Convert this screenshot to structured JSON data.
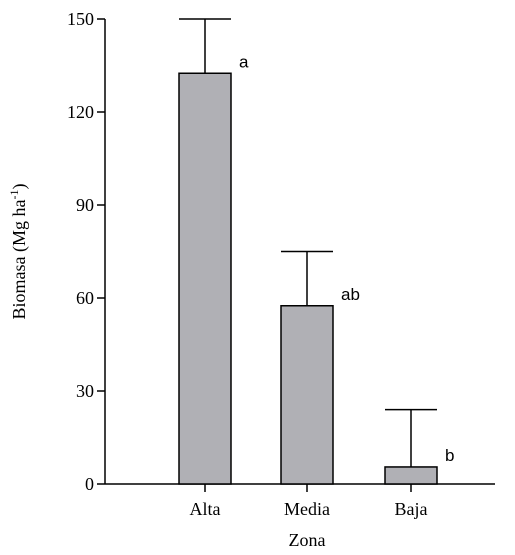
{
  "chart_data": {
    "type": "bar",
    "categories": [
      "Alta",
      "Media",
      "Baja"
    ],
    "values": [
      132.5,
      57.5,
      5.5
    ],
    "error_upper": [
      150,
      75,
      24
    ],
    "significance_labels": [
      "a",
      "ab",
      "b"
    ],
    "title": "",
    "xlabel": "Zona",
    "ylabel_main": "Biomasa (Mg ha",
    "ylabel_sup": "-1",
    "ylabel_end": ")",
    "ylim": [
      0,
      150
    ],
    "yticks": [
      0,
      30,
      60,
      90,
      120,
      150
    ],
    "bar_color": "#b0b0b5",
    "grid": false,
    "legend": "none"
  }
}
